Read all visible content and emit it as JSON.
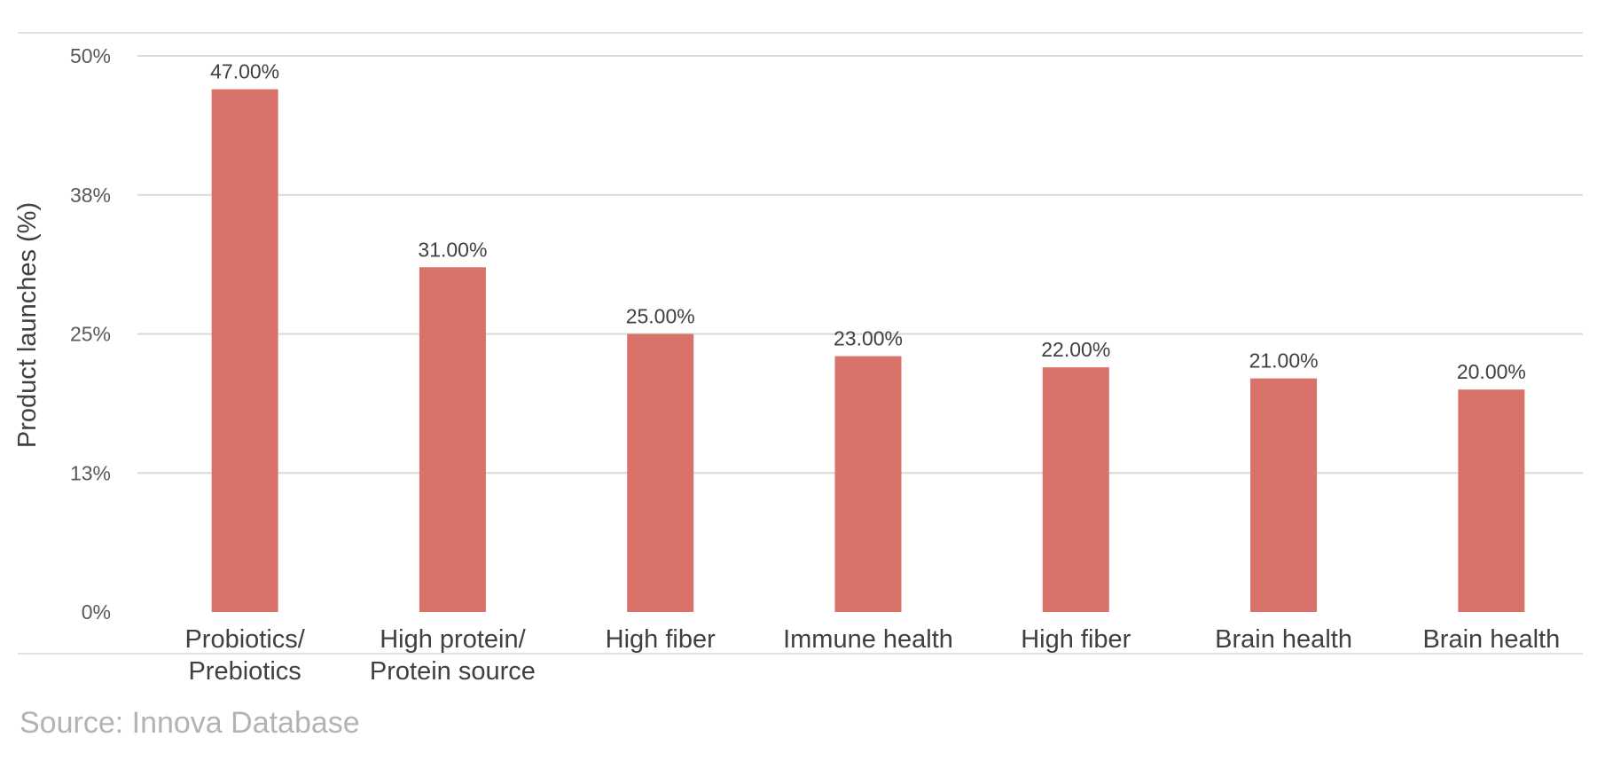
{
  "chart_data": {
    "type": "bar",
    "categories": [
      [
        "Probiotics/",
        "Prebiotics"
      ],
      [
        "High protein/",
        "Protein source"
      ],
      [
        "High fiber"
      ],
      [
        "Immune health"
      ],
      [
        "High fiber"
      ],
      [
        "Brain health"
      ],
      [
        "Brain health"
      ]
    ],
    "values": [
      47,
      31,
      25,
      23,
      22,
      21,
      20
    ],
    "value_labels": [
      "47.00%",
      "31.00%",
      "25.00%",
      "23.00%",
      "22.00%",
      "21.00%",
      "20.00%"
    ],
    "ylabel": "Product launches (%)",
    "ylim": [
      0,
      50
    ],
    "yticks": [
      0,
      12.5,
      25,
      37.5,
      50
    ],
    "ytick_labels": [
      "0%",
      "13%",
      "25%",
      "38%",
      "50%"
    ],
    "grid": true,
    "bar_color": "#d9736a",
    "grid_color": "#d9d9d9"
  },
  "source": "Source: Innova Database"
}
